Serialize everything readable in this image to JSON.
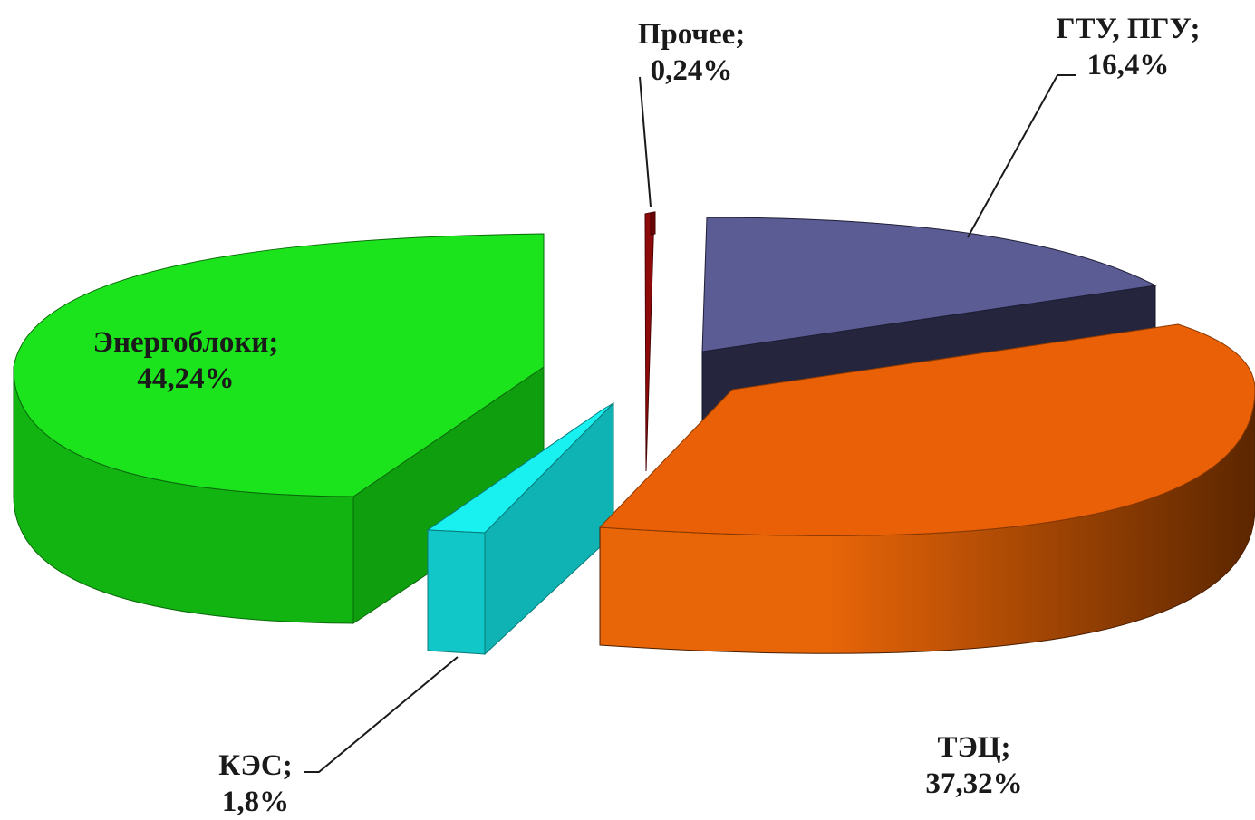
{
  "chart_data": {
    "type": "pie",
    "style": "3d-exploded",
    "slices": [
      {
        "key": "energo",
        "label": "Энергоблоки;",
        "value_text": "44,24%",
        "value": 44.24,
        "colors": {
          "top": "#1CE41C",
          "side": "#12B412",
          "cut": "#0E9E0E"
        }
      },
      {
        "key": "kes",
        "label": "КЭС;",
        "value_text": "1,8%",
        "value": 1.8,
        "colors": {
          "top": "#19F0F0",
          "side": "#12C7C7",
          "cut": "#10B3B3"
        }
      },
      {
        "key": "tec",
        "label": "ТЭЦ;",
        "value_text": "37,32%",
        "value": 37.32,
        "colors": {
          "top": "#EA6006",
          "side_light": "#E86508",
          "side_dark": "#5C2600",
          "cut": "#B84A04"
        }
      },
      {
        "key": "gtu",
        "label": "ГТУ, ПГУ;",
        "value_text": "16,4%",
        "value": 16.4,
        "colors": {
          "top": "#5C5C94",
          "side": "#2C2C48",
          "cut": "#25253D"
        }
      },
      {
        "key": "other",
        "label": "Прочее;",
        "value_text": "0,24%",
        "value": 0.24,
        "colors": {
          "top": "#8E0A0A",
          "side": "#6A0606",
          "cut": "#5A0505"
        }
      }
    ]
  }
}
